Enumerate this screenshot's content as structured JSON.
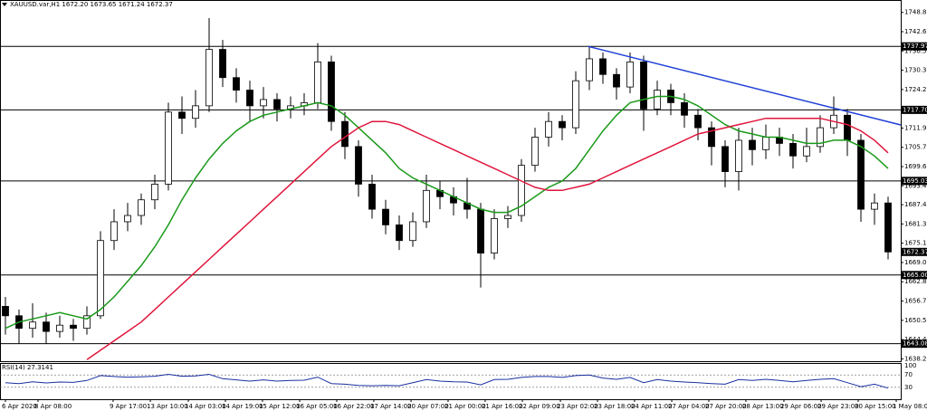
{
  "chart_data": {
    "type": "candlestick",
    "title": "XAUUSD.var,H1 1672.20 1673.65 1671.24 1672.37",
    "ylim": [
      1637.5,
      1752.76
    ],
    "yticks": [
      {
        "value": 1748.8,
        "label": "1748.80"
      },
      {
        "value": 1742.65,
        "label": "1742.65"
      },
      {
        "value": 1736.5,
        "label": "1736.50"
      },
      {
        "value": 1730.35,
        "label": "1730.35"
      },
      {
        "value": 1724.2,
        "label": "1724.20"
      },
      {
        "value": 1711.9,
        "label": "1711.90"
      },
      {
        "value": 1705.75,
        "label": "1705.75"
      },
      {
        "value": 1699.6,
        "label": "1699.60"
      },
      {
        "value": 1693.45,
        "label": "1693.45"
      },
      {
        "value": 1687.45,
        "label": "1687.45"
      },
      {
        "value": 1681.3,
        "label": "1681.30"
      },
      {
        "value": 1675.15,
        "label": "1675.15"
      },
      {
        "value": 1669,
        "label": "1669.00"
      },
      {
        "value": 1662.85,
        "label": "1662.85"
      },
      {
        "value": 1656.7,
        "label": "1656.70"
      },
      {
        "value": 1650.55,
        "label": "1650.55"
      },
      {
        "value": 1644.4,
        "label": "1644.40"
      },
      {
        "value": 1638.25,
        "label": "1638.25"
      }
    ],
    "xticks": [
      {
        "value": 0,
        "label": "6 Apr 2020"
      },
      {
        "value": 2.4,
        "label": "8 Apr 08:00"
      },
      {
        "value": 7.93,
        "label": "9 Apr 17:00"
      },
      {
        "value": 10.67,
        "label": "13 Apr 10:00"
      },
      {
        "value": 13.47,
        "label": "14 Apr 03:00"
      },
      {
        "value": 16.2,
        "label": "14 Apr 19:00"
      },
      {
        "value": 18.93,
        "label": "15 Apr 12:00"
      },
      {
        "value": 21.67,
        "label": "16 Apr 05:00"
      },
      {
        "value": 24.4,
        "label": "16 Apr 22:00"
      },
      {
        "value": 27.13,
        "label": "17 Apr 14:00"
      },
      {
        "value": 29.87,
        "label": "20 Apr 07:00"
      },
      {
        "value": 32.6,
        "label": "21 Apr 00:00"
      },
      {
        "value": 35.33,
        "label": "21 Apr 16:00"
      },
      {
        "value": 38.07,
        "label": "22 Apr 09:00"
      },
      {
        "value": 40.87,
        "label": "23 Apr 02:00"
      },
      {
        "value": 43.6,
        "label": "23 Apr 18:00"
      },
      {
        "value": 46.33,
        "label": "24 Apr 11:00"
      },
      {
        "value": 49.07,
        "label": "27 Apr 04:00"
      },
      {
        "value": 51.8,
        "label": "27 Apr 20:00"
      },
      {
        "value": 54.53,
        "label": "28 Apr 13:00"
      },
      {
        "value": 57.33,
        "label": "29 Apr 06:00"
      },
      {
        "value": 60.07,
        "label": "29 Apr 23:00"
      },
      {
        "value": 62.8,
        "label": "30 Apr 15:00"
      },
      {
        "value": 65.6,
        "label": "1 May 08:00"
      }
    ],
    "candles": [
      [
        1655,
        1658,
        1646,
        1652
      ],
      [
        1652,
        1654,
        1643,
        1648
      ],
      [
        1648,
        1656,
        1645,
        1650
      ],
      [
        1650,
        1653,
        1643,
        1647
      ],
      [
        1647,
        1652,
        1645,
        1649
      ],
      [
        1649,
        1651,
        1644,
        1648
      ],
      [
        1648,
        1655,
        1646,
        1652
      ],
      [
        1652,
        1679,
        1651,
        1676
      ],
      [
        1676,
        1686,
        1673,
        1682
      ],
      [
        1682,
        1688,
        1679,
        1684
      ],
      [
        1684,
        1691,
        1681,
        1689
      ],
      [
        1689,
        1697,
        1686,
        1694
      ],
      [
        1694,
        1720,
        1692,
        1717
      ],
      [
        1717,
        1722,
        1710,
        1715
      ],
      [
        1715,
        1724,
        1712,
        1719
      ],
      [
        1719,
        1747,
        1717,
        1737
      ],
      [
        1737,
        1740,
        1725,
        1728
      ],
      [
        1728,
        1731,
        1720,
        1724
      ],
      [
        1724,
        1727,
        1714,
        1719
      ],
      [
        1719,
        1725,
        1715,
        1721
      ],
      [
        1721,
        1723,
        1714,
        1718
      ],
      [
        1718,
        1722,
        1715,
        1719
      ],
      [
        1719,
        1723,
        1716,
        1720
      ],
      [
        1720,
        1739,
        1718,
        1733
      ],
      [
        1733,
        1735,
        1711,
        1714
      ],
      [
        1714,
        1717,
        1702,
        1706
      ],
      [
        1706,
        1708,
        1690,
        1694
      ],
      [
        1694,
        1697,
        1683,
        1686
      ],
      [
        1686,
        1689,
        1678,
        1681
      ],
      [
        1681,
        1684,
        1673,
        1676
      ],
      [
        1676,
        1685,
        1674,
        1682
      ],
      [
        1682,
        1697,
        1680,
        1692
      ],
      [
        1692,
        1695,
        1686,
        1690
      ],
      [
        1690,
        1693,
        1684,
        1688
      ],
      [
        1688,
        1696,
        1683,
        1686
      ],
      [
        1686,
        1688,
        1661,
        1672
      ],
      [
        1672,
        1686,
        1670,
        1683
      ],
      [
        1683,
        1687,
        1680,
        1684
      ],
      [
        1684,
        1702,
        1682,
        1700
      ],
      [
        1700,
        1712,
        1698,
        1709
      ],
      [
        1709,
        1717,
        1706,
        1714
      ],
      [
        1714,
        1716,
        1708,
        1712
      ],
      [
        1712,
        1730,
        1710,
        1727
      ],
      [
        1727,
        1738,
        1724,
        1734
      ],
      [
        1734,
        1736,
        1726,
        1729
      ],
      [
        1729,
        1731,
        1721,
        1725
      ],
      [
        1725,
        1736,
        1723,
        1733
      ],
      [
        1733,
        1735,
        1711,
        1718
      ],
      [
        1718,
        1727,
        1716,
        1724
      ],
      [
        1724,
        1726,
        1716,
        1720
      ],
      [
        1720,
        1723,
        1712,
        1716
      ],
      [
        1716,
        1718,
        1708,
        1712
      ],
      [
        1712,
        1714,
        1700,
        1706
      ],
      [
        1706,
        1708,
        1693,
        1698
      ],
      [
        1698,
        1712,
        1692,
        1708
      ],
      [
        1708,
        1712,
        1700,
        1705
      ],
      [
        1705,
        1713,
        1702,
        1709
      ],
      [
        1709,
        1712,
        1703,
        1707
      ],
      [
        1707,
        1710,
        1699,
        1703
      ],
      [
        1703,
        1712,
        1701,
        1706
      ],
      [
        1706,
        1716,
        1704,
        1712
      ],
      [
        1712,
        1722,
        1710,
        1716
      ],
      [
        1716,
        1718,
        1703,
        1708
      ],
      [
        1708,
        1710,
        1682,
        1686
      ],
      [
        1686,
        1691,
        1681,
        1688
      ],
      [
        1688,
        1690,
        1670,
        1672.37
      ]
    ],
    "moving_averages": [
      {
        "color": "#1a9a1a",
        "values": [
          1648,
          1650,
          1651,
          1652,
          1653,
          1652,
          1651,
          1654,
          1658,
          1663,
          1668,
          1674,
          1681,
          1689,
          1696,
          1702,
          1707,
          1711,
          1714,
          1716,
          1717,
          1718,
          1719,
          1720,
          1719,
          1716,
          1712,
          1708,
          1704,
          1699,
          1696,
          1694,
          1692,
          1690,
          1688,
          1686,
          1685,
          1685,
          1687,
          1690,
          1693,
          1695,
          1699,
          1705,
          1711,
          1716,
          1720,
          1721,
          1722,
          1722,
          1721,
          1719,
          1716,
          1713,
          1711,
          1710,
          1709,
          1709,
          1708,
          1707,
          1707,
          1708,
          1708,
          1706,
          1703,
          1699
        ]
      },
      {
        "color": "#e0163c",
        "values": [
          null,
          null,
          null,
          null,
          null,
          null,
          1638,
          1641,
          1644,
          1647,
          1650,
          1654,
          1658,
          1662,
          1666,
          1670,
          1674,
          1678,
          1682,
          1686,
          1690,
          1694,
          1698,
          1702,
          1706,
          1709,
          1712,
          1714,
          1714,
          1713,
          1711,
          1709,
          1707,
          1705,
          1703,
          1701,
          1699,
          1697,
          1695,
          1693,
          1692,
          1692,
          1693,
          1694,
          1696,
          1698,
          1700,
          1702,
          1704,
          1706,
          1708,
          1710,
          1711,
          1712,
          1713,
          1714,
          1715,
          1715,
          1715,
          1715,
          1715,
          1714,
          1713,
          1711,
          1708,
          1704
        ]
      }
    ],
    "levels": [
      {
        "value": 1737.97,
        "label": "1737.97"
      },
      {
        "value": 1717.7,
        "label": "1717.70"
      },
      {
        "value": 1695.03,
        "label": "1695.03"
      },
      {
        "value": 1665,
        "label": "1665.00"
      },
      {
        "value": 1643.08,
        "label": "1643.08"
      }
    ],
    "price_label": {
      "value": 1672.37,
      "label": "1672.37"
    },
    "trendline": {
      "color": "#1f3fd6",
      "points": [
        [
          42.9,
          1737.97
        ],
        [
          65.93,
          1712.9
        ]
      ]
    },
    "rsi": {
      "label": "RSI(14) 27.3141",
      "color": "#1a2fa0",
      "ylim": [
        0,
        100
      ],
      "yticks": [
        100,
        70,
        30
      ],
      "values": [
        45,
        42,
        48,
        44,
        47,
        46,
        52,
        68,
        65,
        63,
        64,
        66,
        72,
        66,
        67,
        72,
        58,
        54,
        50,
        54,
        50,
        52,
        53,
        63,
        42,
        40,
        36,
        35,
        36,
        35,
        45,
        55,
        50,
        48,
        47,
        38,
        55,
        56,
        62,
        65,
        65,
        62,
        68,
        70,
        60,
        56,
        62,
        45,
        55,
        50,
        47,
        45,
        42,
        40,
        55,
        52,
        56,
        52,
        48,
        52,
        56,
        58,
        45,
        32,
        40,
        27.3141
      ]
    }
  }
}
